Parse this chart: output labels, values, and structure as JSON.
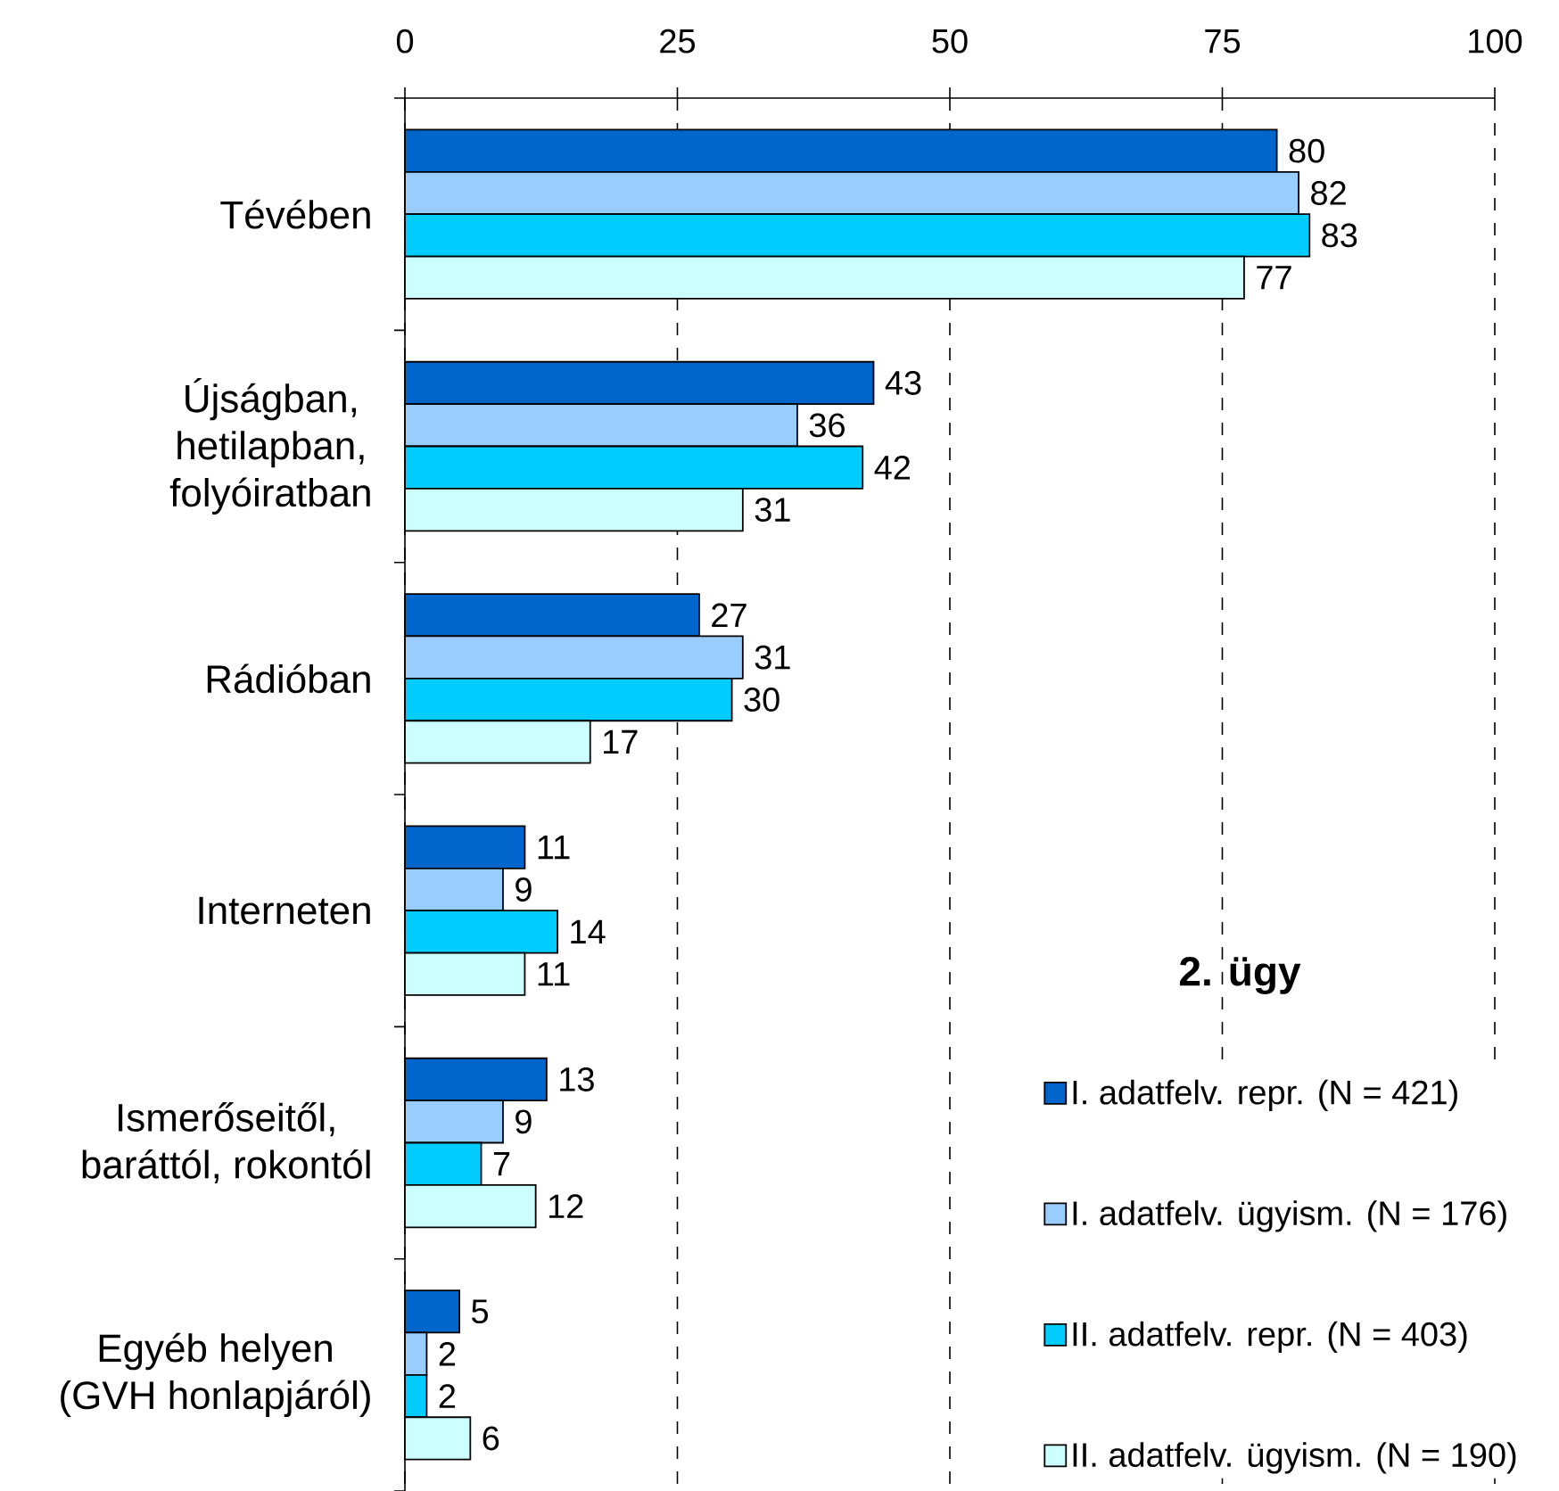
{
  "chart_data": {
    "type": "bar",
    "orientation": "horizontal",
    "title": "2. ügy",
    "categories": [
      "Tévében",
      "Újságban, hetilapban, folyóiratban",
      "Rádióban",
      "Interneten",
      "Ismerőseitől, baráttól, rokontól",
      "Egyéb helyen (GVH honlapjáról)"
    ],
    "series": [
      {
        "name": "I. adatfelv. repr. (N = 421)",
        "color": "#0066cc",
        "values": [
          80,
          43,
          27,
          11,
          13,
          5
        ]
      },
      {
        "name": "I. adatfelv. ügyism. (N = 176)",
        "color": "#99ccff",
        "values": [
          82,
          36,
          31,
          9,
          9,
          2
        ]
      },
      {
        "name": "II. adatfelv. repr. (N = 403)",
        "color": "#00ccff",
        "values": [
          83,
          42,
          30,
          14,
          7,
          2
        ]
      },
      {
        "name": "II. adatfelv. ügyism. (N = 190)",
        "color": "#ccffff",
        "values": [
          77,
          31,
          17,
          11,
          12,
          6
        ]
      }
    ],
    "xlim": [
      0,
      100
    ],
    "xticks": [
      0,
      25,
      50,
      75,
      100
    ],
    "grid": "x",
    "legend": "bottom right",
    "data_labels": true
  }
}
